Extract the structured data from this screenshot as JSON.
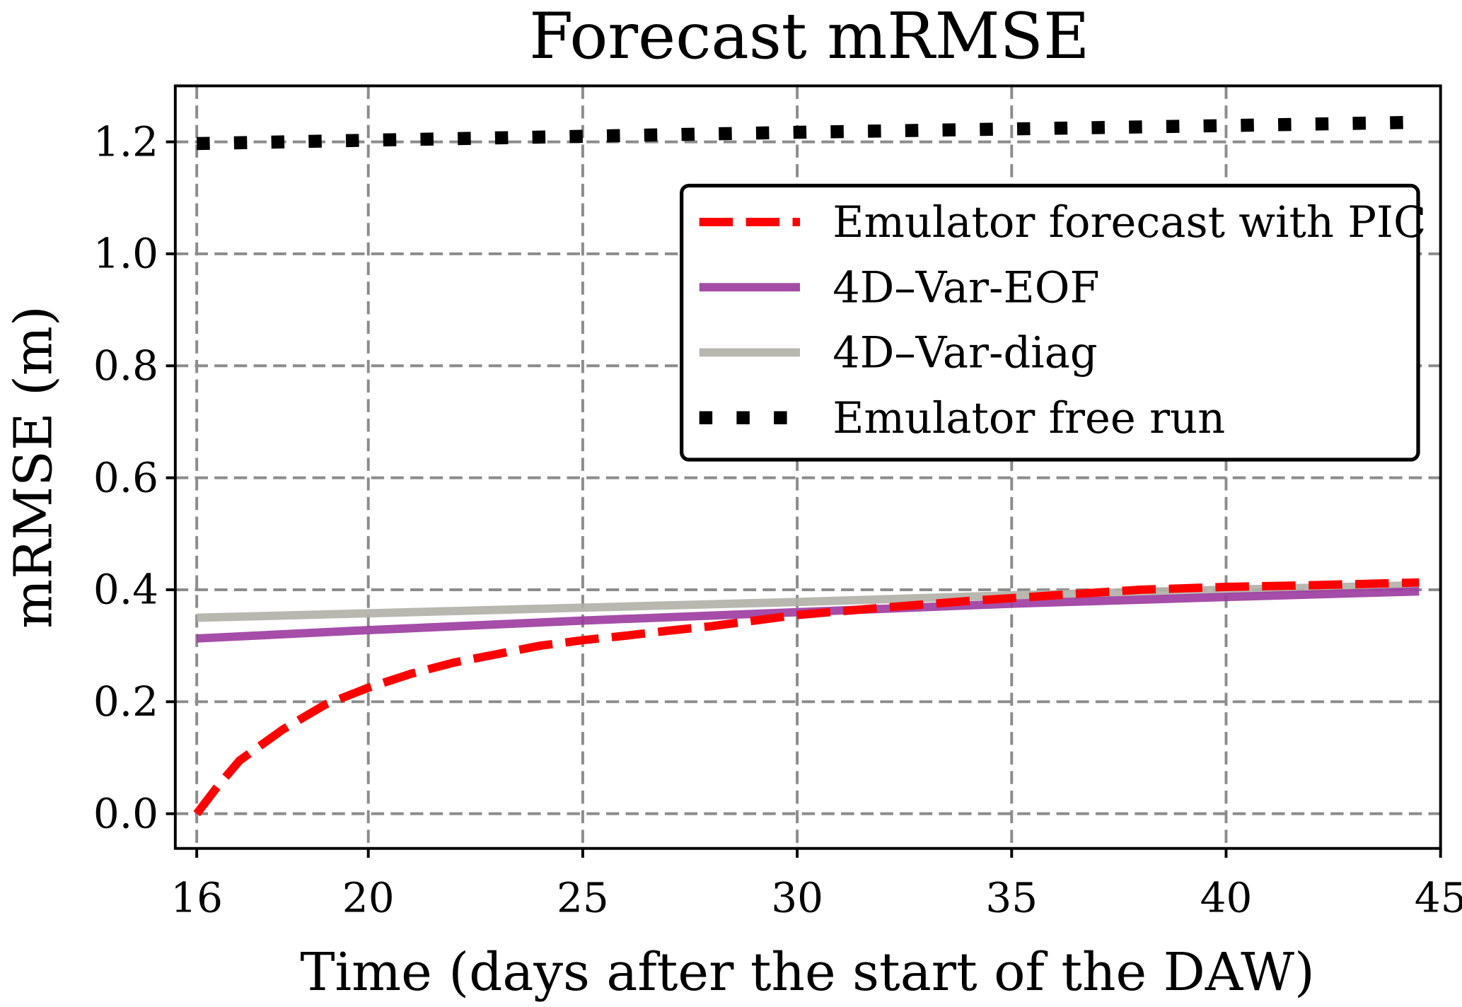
{
  "chart_data": {
    "type": "line",
    "title": "Forecast mRMSE",
    "xlabel": "Time (days after the start of the DAW)",
    "ylabel": "mRMSE (m)",
    "xlim": [
      15.5,
      45
    ],
    "ylim": [
      -0.062,
      1.3
    ],
    "xticks": [
      16,
      20,
      25,
      30,
      35,
      40,
      45
    ],
    "yticks": [
      0.0,
      0.2,
      0.4,
      0.6,
      0.8,
      1.0,
      1.2
    ],
    "xtick_labels": [
      "16",
      "20",
      "25",
      "30",
      "35",
      "40",
      "45"
    ],
    "ytick_labels": [
      "0.0",
      "0.2",
      "0.4",
      "0.6",
      "0.8",
      "1.0",
      "1.2"
    ],
    "grid": true,
    "legend_position": "upper-right",
    "series": [
      {
        "name": "Emulator forecast with PIC",
        "color": "#ff0000",
        "style": "dashed",
        "x": [
          16,
          16.5,
          17,
          18,
          19,
          20,
          21,
          22,
          23,
          24,
          25,
          26,
          27,
          28,
          29,
          30,
          32,
          34,
          36,
          38,
          40,
          42,
          44.5
        ],
        "y": [
          0.0,
          0.05,
          0.095,
          0.15,
          0.195,
          0.225,
          0.25,
          0.27,
          0.285,
          0.3,
          0.31,
          0.318,
          0.327,
          0.335,
          0.345,
          0.355,
          0.368,
          0.38,
          0.39,
          0.4,
          0.405,
          0.408,
          0.413
        ]
      },
      {
        "name": "4D–Var-EOF",
        "color": "#9b3a9e",
        "style": "solid",
        "x": [
          16,
          20,
          25,
          30,
          35,
          40,
          44.5
        ],
        "y": [
          0.313,
          0.328,
          0.345,
          0.36,
          0.375,
          0.387,
          0.397
        ]
      },
      {
        "name": "4D–Var-diag",
        "color": "#b0b0a8",
        "style": "solid",
        "x": [
          16,
          20,
          25,
          30,
          35,
          40,
          44.5
        ],
        "y": [
          0.35,
          0.358,
          0.368,
          0.378,
          0.39,
          0.4,
          0.408
        ]
      },
      {
        "name": "Emulator free run",
        "color": "#000000",
        "style": "dotted",
        "x": [
          16,
          20,
          25,
          30,
          35,
          40,
          44.5
        ],
        "y": [
          1.197,
          1.203,
          1.21,
          1.217,
          1.223,
          1.229,
          1.235
        ]
      }
    ]
  }
}
